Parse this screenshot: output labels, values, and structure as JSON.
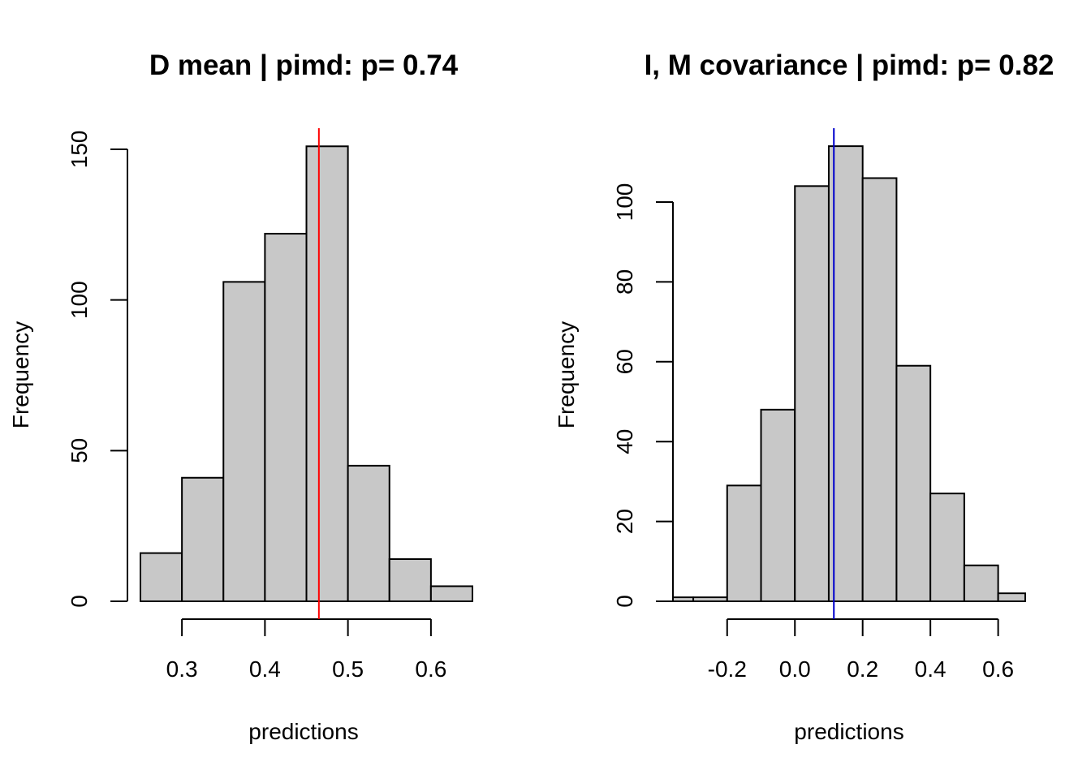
{
  "chart_data": [
    {
      "type": "bar",
      "title": "D mean | pimd: p=  0.74",
      "xlabel": "predictions",
      "ylabel": "Frequency",
      "bin_edges": [
        0.25,
        0.3,
        0.35,
        0.4,
        0.45,
        0.5,
        0.55,
        0.6,
        0.65
      ],
      "values": [
        16,
        41,
        106,
        122,
        151,
        45,
        14,
        5
      ],
      "xticks": [
        0.3,
        0.4,
        0.5,
        0.6
      ],
      "xtick_labels": [
        "0.3",
        "0.4",
        "0.5",
        "0.6"
      ],
      "yticks": [
        0,
        50,
        100,
        150
      ],
      "ytick_labels": [
        "0",
        "50",
        "100",
        "150"
      ],
      "observed_value": 0.465,
      "observed_line_color": "#ff0000",
      "bar_color": "#c8c8c8"
    },
    {
      "type": "bar",
      "title": "I, M covariance | pimd: p=  0.82",
      "xlabel": "predictions",
      "ylabel": "Frequency",
      "bin_edges": [
        -0.36,
        -0.3,
        -0.2,
        -0.1,
        0.0,
        0.1,
        0.2,
        0.3,
        0.4,
        0.5,
        0.6,
        0.68
      ],
      "values": [
        1,
        1,
        29,
        48,
        104,
        114,
        106,
        59,
        27,
        9,
        2
      ],
      "xticks": [
        -0.2,
        0.0,
        0.2,
        0.4,
        0.6
      ],
      "xtick_labels": [
        "-0.2",
        "0.0",
        "0.2",
        "0.4",
        "0.6"
      ],
      "yticks": [
        0,
        20,
        40,
        60,
        80,
        100
      ],
      "ytick_labels": [
        "0",
        "20",
        "40",
        "60",
        "80",
        "100"
      ],
      "observed_value": 0.115,
      "observed_line_color": "#0000cc",
      "bar_color": "#c8c8c8"
    }
  ]
}
